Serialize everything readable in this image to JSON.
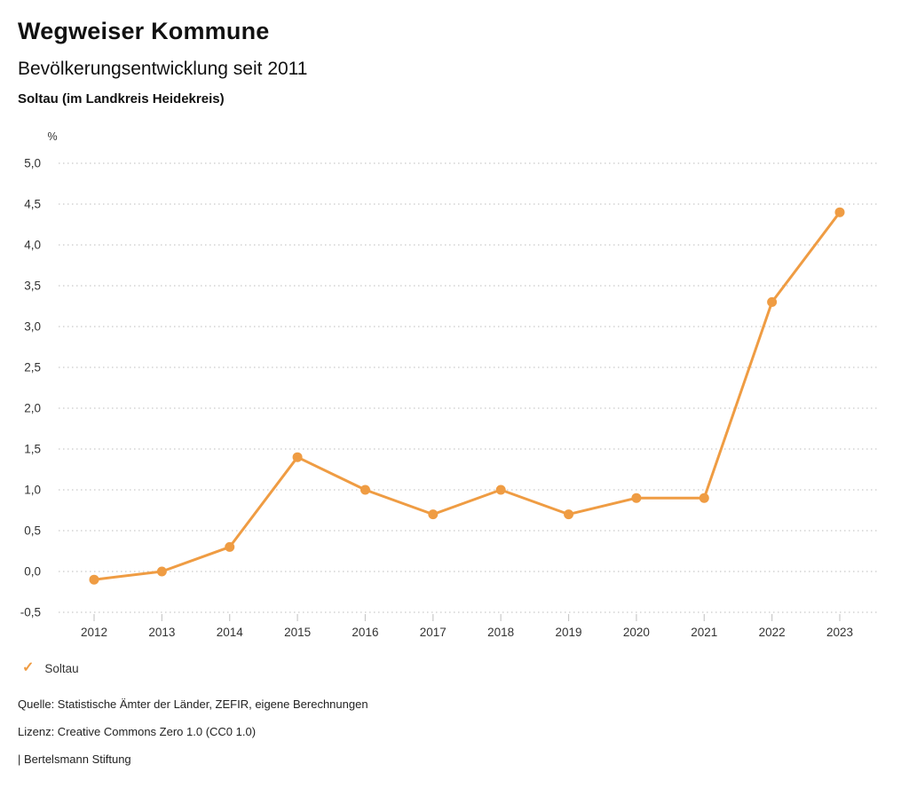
{
  "header": {
    "title": "Wegweiser Kommune",
    "subtitle": "Bevölkerungsentwicklung seit 2011",
    "location": "Soltau (im Landkreis Heidekreis)"
  },
  "chart_data": {
    "type": "line",
    "title": "Bevölkerungsentwicklung seit 2011",
    "subtitle": "Soltau (im Landkreis Heidekreis)",
    "xlabel": "",
    "ylabel": "%",
    "categories": [
      "2012",
      "2013",
      "2014",
      "2015",
      "2016",
      "2017",
      "2018",
      "2019",
      "2020",
      "2021",
      "2022",
      "2023"
    ],
    "series": [
      {
        "name": "Soltau",
        "values": [
          -0.1,
          0.0,
          0.3,
          1.4,
          1.0,
          0.7,
          1.0,
          0.7,
          0.9,
          0.9,
          3.3,
          4.4
        ]
      }
    ],
    "ylim": [
      -0.5,
      5.0
    ],
    "ytick_step": 0.5,
    "ytick_labels_top_to_bottom": [
      "5,0",
      "4,5",
      "4,0",
      "3,5",
      "3,0",
      "2,5",
      "2,0",
      "1,5",
      "1,0",
      "0,5",
      "0,0",
      "-0,5"
    ],
    "grid": "horizontal-dotted",
    "legend_position": "bottom-left",
    "marker": "filled-circle"
  },
  "legend": {
    "check_icon": "✓",
    "label": "Soltau"
  },
  "footer": {
    "source": "Quelle: Statistische Ämter der Länder, ZEFIR, eigene Berechnungen",
    "license": "Lizenz: Creative Commons Zero 1.0 (CC0 1.0)",
    "attribution": "| Bertelsmann Stiftung"
  },
  "colors": {
    "accent": "#EF9C43",
    "grid": "#C9C9C9",
    "axis_text": "#333333",
    "heading_text": "#111111"
  }
}
